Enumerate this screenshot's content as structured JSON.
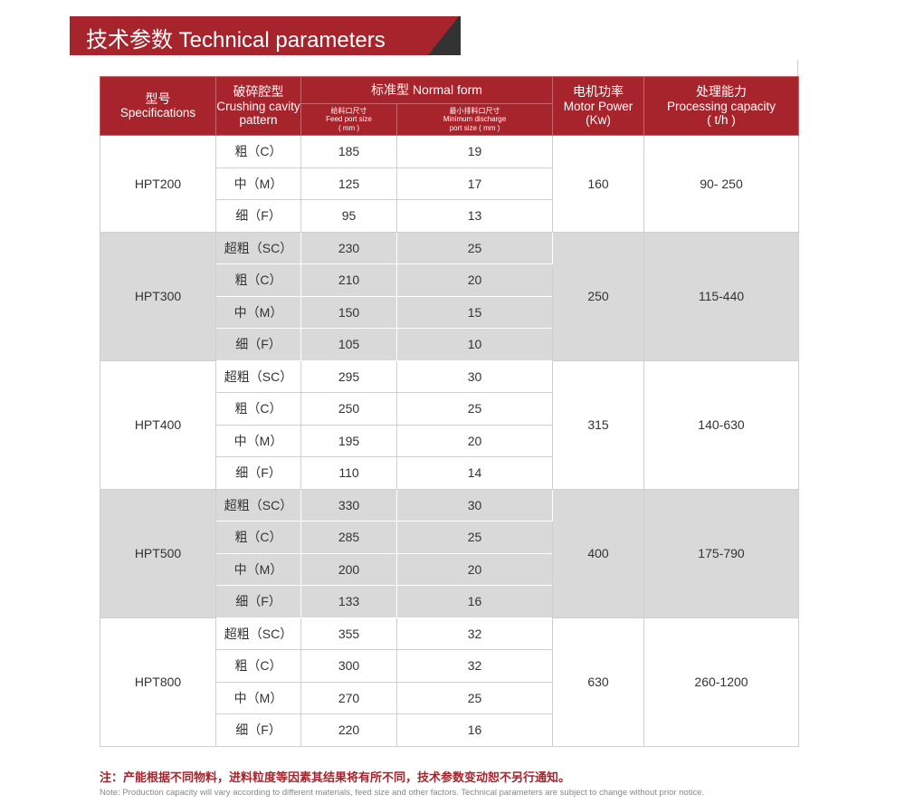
{
  "banner": {
    "title": "技术参数   Technical parameters"
  },
  "header": {
    "spec_cn": "型号",
    "spec_en": "Specifications",
    "cavity_cn": "破碎腔型",
    "cavity_en": "Crushing cavity pattern",
    "normal": "标准型 Normal form",
    "feed_cn": "给料口尺寸",
    "feed_en": "Feed port size",
    "feed_unit": "( mm )",
    "disch_cn": "最小排料口尺寸",
    "disch_en": "Minimum discharge",
    "disch_unit": "port size ( mm )",
    "motor_cn": "电机功率",
    "motor_en": "Motor Power",
    "motor_unit": "(Kw)",
    "cap_cn": "处理能力",
    "cap_en": "Processing capacity",
    "cap_unit": "( t/h )"
  },
  "models": [
    {
      "name": "HPT200",
      "power": "160",
      "capacity": "90- 250",
      "grey": false,
      "rows": [
        [
          "粗（C）",
          "185",
          "19"
        ],
        [
          "中（M）",
          "125",
          "17"
        ],
        [
          "细（F）",
          "95",
          "13"
        ]
      ]
    },
    {
      "name": "HPT300",
      "power": "250",
      "capacity": "115-440",
      "grey": true,
      "rows": [
        [
          "超粗（SC）",
          "230",
          "25"
        ],
        [
          "粗（C）",
          "210",
          "20"
        ],
        [
          "中（M）",
          "150",
          "15"
        ],
        [
          "细（F）",
          "105",
          "10"
        ]
      ]
    },
    {
      "name": "HPT400",
      "power": "315",
      "capacity": "140-630",
      "grey": false,
      "rows": [
        [
          "超粗（SC）",
          "295",
          "30"
        ],
        [
          "粗（C）",
          "250",
          "25"
        ],
        [
          "中（M）",
          "195",
          "20"
        ],
        [
          "细（F）",
          "110",
          "14"
        ]
      ]
    },
    {
      "name": "HPT500",
      "power": "400",
      "capacity": "175-790",
      "grey": true,
      "rows": [
        [
          "超粗（SC）",
          "330",
          "30"
        ],
        [
          "粗（C）",
          "285",
          "25"
        ],
        [
          "中（M）",
          "200",
          "20"
        ],
        [
          "细（F）",
          "133",
          "16"
        ]
      ]
    },
    {
      "name": "HPT800",
      "power": "630",
      "capacity": "260-1200",
      "grey": false,
      "rows": [
        [
          "超粗（SC）",
          "355",
          "32"
        ],
        [
          "粗（C）",
          "300",
          "32"
        ],
        [
          "中（M）",
          "270",
          "25"
        ],
        [
          "细（F）",
          "220",
          "16"
        ]
      ]
    }
  ],
  "notes": {
    "cn": "注：产能根据不同物料，进料粒度等因素其结果将有所不同，技术参数变动恕不另行通知。",
    "en": "Note: Production capacity will vary according to different materials, feed size and other factors. Technical parameters are subject to change without prior notice."
  }
}
